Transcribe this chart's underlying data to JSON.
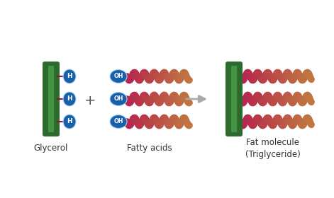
{
  "background_color": "#ffffff",
  "glycerol_bar_color_dark": "#2d6a2d",
  "glycerol_bar_color_mid": "#3a8c3a",
  "glycerol_bar_color_light": "#5ab55a",
  "h_circle_color": "#1a5fa8",
  "oh_circle_color": "#1a5fa8",
  "chain_color_start": "#b5244e",
  "chain_color_end": "#c07840",
  "label_glycerol": "Glycerol",
  "label_fatty": "Fatty acids",
  "label_fat": "Fat molecule\n(Triglyceride)",
  "label_fontsize": 8.5,
  "title_color": "#333333",
  "fig_w": 4.71,
  "fig_h": 2.8,
  "dpi": 100
}
